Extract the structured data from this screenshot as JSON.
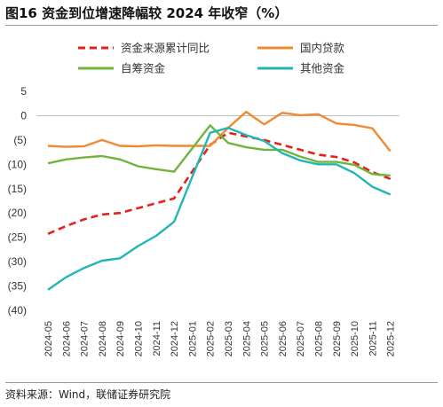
{
  "figure": {
    "title": "图16 资金到位增速降幅较 2024 年收窄（%）",
    "source": "资料来源：Wind，联储证券研究院"
  },
  "chart_data": {
    "type": "line",
    "title": "图16 资金到位增速降幅较 2024 年收窄（%）",
    "xlabel": "",
    "ylabel": "",
    "ylim": [
      -40,
      5
    ],
    "yticks": [
      5,
      0,
      -5,
      -10,
      -15,
      -20,
      -25,
      -30,
      -35,
      -40
    ],
    "ytick_labels": [
      "5",
      "0",
      "(5)",
      "(10)",
      "(15)",
      "(20)",
      "(25)",
      "(30)",
      "(35)",
      "(40)"
    ],
    "grid": false,
    "legend_position": "top",
    "categories": [
      "2024-05",
      "2024-06",
      "2024-07",
      "2024-08",
      "2024-09",
      "2024-10",
      "2024-11",
      "2024-12",
      "2025-01",
      "2025-02",
      "2025-03",
      "2025-04",
      "2025-05",
      "2025-06",
      "2025-07",
      "2025-08",
      "2025-09",
      "2025-10",
      "2025-11",
      "2025-12"
    ],
    "series": [
      {
        "name": "资金来源累计同比",
        "color": "#e8201a",
        "dash": true,
        "values": [
          -24.3,
          -22.7,
          -21.3,
          -20.3,
          -20.0,
          -19.0,
          -18.0,
          -17.0,
          null,
          -6.0,
          -3.5,
          -4.3,
          -5.0,
          -6.0,
          -7.0,
          -8.0,
          -8.5,
          -9.6,
          -11.6,
          -13.0
        ]
      },
      {
        "name": "国内贷款",
        "color": "#f08a32",
        "dash": false,
        "values": [
          -6.2,
          -6.4,
          -6.3,
          -5.0,
          -6.2,
          -6.3,
          -6.1,
          -6.2,
          null,
          -6.2,
          -2.5,
          0.8,
          -1.8,
          0.6,
          0.1,
          0.3,
          -1.6,
          -1.9,
          -2.6,
          -7.3
        ]
      },
      {
        "name": "自筹资金",
        "color": "#70b43c",
        "dash": false,
        "values": [
          -9.8,
          -9.0,
          -8.6,
          -8.3,
          -9.0,
          -10.4,
          -11.0,
          -11.5,
          null,
          -2.0,
          -5.6,
          -6.5,
          -7.0,
          -7.0,
          -8.4,
          -9.5,
          -9.5,
          -10.1,
          -12.0,
          -12.3
        ]
      },
      {
        "name": "其他资金",
        "color": "#22b5b5",
        "dash": false,
        "values": [
          -35.8,
          -33.2,
          -31.3,
          -29.8,
          -29.3,
          -26.8,
          -24.7,
          -21.8,
          null,
          -3.5,
          -2.5,
          -4.0,
          -5.2,
          -7.7,
          -9.2,
          -10.0,
          -10.0,
          -11.8,
          -14.6,
          -16.2
        ]
      }
    ]
  }
}
